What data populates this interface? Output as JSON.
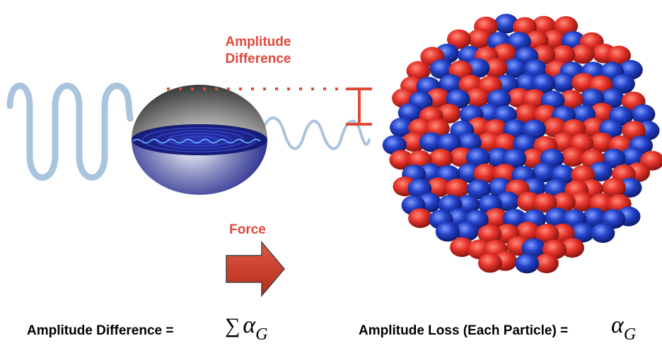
{
  "labels": {
    "amplitude_difference_line1": "Amplitude",
    "amplitude_difference_line2": "Difference",
    "force": "Force"
  },
  "equations": {
    "difference_label": "Amplitude Difference =",
    "difference_sum_symbol": "∑",
    "difference_alpha": "α",
    "difference_subscript": "G",
    "loss_label": "Amplitude Loss (Each Particle) =",
    "loss_alpha": "α",
    "loss_subscript": "G"
  },
  "colors": {
    "accent_red": "#e0483a",
    "wave_blue": "#a9c4dd",
    "particle_red": "#e5332a",
    "particle_blue": "#2342c8",
    "sphere_dark_blue": "#1a1f8a"
  }
}
